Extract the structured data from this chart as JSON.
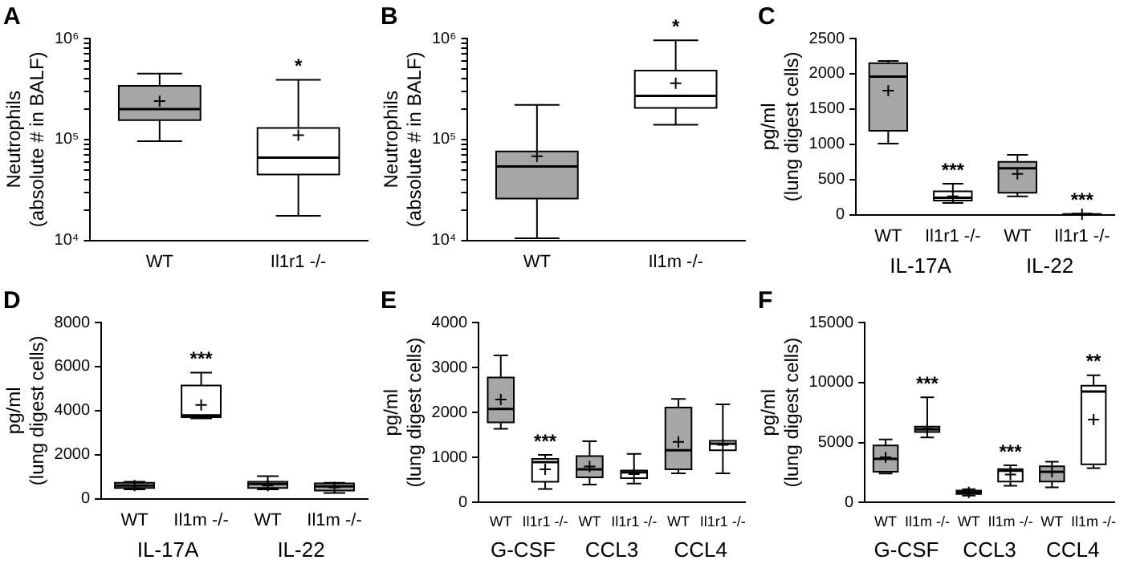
{
  "chart_data": [
    {
      "type": "box",
      "title": "A",
      "ylabel": "Neutrophils\n(absolute # in BALF)",
      "categories": [
        "WT",
        "Il1r1 -/-"
      ],
      "colors": [
        "#a6a6a6",
        "#ffffff"
      ],
      "log": true,
      "ylim": [
        10000,
        1000000
      ],
      "yticks": [
        {
          "value": 10000,
          "label": "10⁴"
        },
        {
          "value": 20000,
          "label": null
        },
        {
          "value": 30000,
          "label": null
        },
        {
          "value": 40000,
          "label": null
        },
        {
          "value": 50000,
          "label": null
        },
        {
          "value": 60000,
          "label": null
        },
        {
          "value": 70000,
          "label": null
        },
        {
          "value": 80000,
          "label": null
        },
        {
          "value": 90000,
          "label": null
        },
        {
          "value": 100000,
          "label": "10⁵"
        },
        {
          "value": 200000,
          "label": null
        },
        {
          "value": 300000,
          "label": null
        },
        {
          "value": 400000,
          "label": null
        },
        {
          "value": 500000,
          "label": null
        },
        {
          "value": 600000,
          "label": null
        },
        {
          "value": 700000,
          "label": null
        },
        {
          "value": 800000,
          "label": null
        },
        {
          "value": 900000,
          "label": null
        },
        {
          "value": 1000000,
          "label": "10⁶"
        }
      ],
      "boxes": [
        {
          "low": 96000,
          "q1": 155000,
          "median": 200000,
          "q3": 340000,
          "high": 450000,
          "mean": 240000
        },
        {
          "low": 17500,
          "q1": 45000,
          "median": 66000,
          "q3": 130000,
          "high": 390000,
          "mean": 110000
        }
      ],
      "value_labels": [
        null,
        "*"
      ]
    },
    {
      "type": "box",
      "title": "B",
      "ylabel": "Neutrophils\n(absolute # in BALF)",
      "categories": [
        "WT",
        "Il1m -/-"
      ],
      "colors": [
        "#a6a6a6",
        "#ffffff"
      ],
      "log": true,
      "ylim": [
        10000,
        1000000
      ],
      "yticks": [
        {
          "value": 10000,
          "label": "10⁴"
        },
        {
          "value": 20000,
          "label": null
        },
        {
          "value": 30000,
          "label": null
        },
        {
          "value": 40000,
          "label": null
        },
        {
          "value": 50000,
          "label": null
        },
        {
          "value": 60000,
          "label": null
        },
        {
          "value": 70000,
          "label": null
        },
        {
          "value": 80000,
          "label": null
        },
        {
          "value": 90000,
          "label": null
        },
        {
          "value": 100000,
          "label": "10⁵"
        },
        {
          "value": 200000,
          "label": null
        },
        {
          "value": 300000,
          "label": null
        },
        {
          "value": 400000,
          "label": null
        },
        {
          "value": 500000,
          "label": null
        },
        {
          "value": 600000,
          "label": null
        },
        {
          "value": 700000,
          "label": null
        },
        {
          "value": 800000,
          "label": null
        },
        {
          "value": 900000,
          "label": null
        },
        {
          "value": 1000000,
          "label": "10⁶"
        }
      ],
      "boxes": [
        {
          "low": 10500,
          "q1": 26000,
          "median": 54000,
          "q3": 76000,
          "high": 220000,
          "mean": 68000
        },
        {
          "low": 140000,
          "q1": 205000,
          "median": 270000,
          "q3": 480000,
          "high": 960000,
          "mean": 360000
        }
      ],
      "value_labels": [
        null,
        "*"
      ]
    },
    {
      "type": "box",
      "title": "C",
      "ylabel": "pg/ml\n(lung digest cells)",
      "categories": [
        "WT",
        "Il1r1 -/-",
        "WT",
        "Il1r1 -/-"
      ],
      "colors": [
        "#a6a6a6",
        "#ffffff",
        "#a6a6a6",
        "#ffffff"
      ],
      "ylim": [
        0,
        2500
      ],
      "yticks": [
        0,
        500,
        1000,
        1500,
        2000,
        2500
      ],
      "boxes": [
        {
          "low": 1010,
          "q1": 1190,
          "median": 1960,
          "q3": 2150,
          "high": 2180,
          "mean": 1760
        },
        {
          "low": 165,
          "q1": 200,
          "median": 240,
          "q3": 330,
          "high": 440,
          "mean": 260
        },
        {
          "low": 260,
          "q1": 310,
          "median": 660,
          "q3": 750,
          "high": 850,
          "mean": 580
        },
        {
          "low": 0,
          "q1": 2,
          "median": 5,
          "q3": 8,
          "high": 15,
          "mean": 6
        }
      ],
      "value_labels": [
        null,
        "***",
        null,
        "***"
      ],
      "annotations": [
        "IL-17A",
        "IL-22"
      ]
    },
    {
      "type": "box",
      "title": "D",
      "ylabel": "pg/ml\n(lung digest cells)",
      "categories": [
        "WT",
        "Il1m -/-",
        "WT",
        "Il1m -/-"
      ],
      "colors": [
        "#a6a6a6",
        "#ffffff",
        "#a6a6a6",
        "#a6a6a6"
      ],
      "ylim": [
        0,
        8000
      ],
      "yticks": [
        0,
        2000,
        4000,
        6000,
        8000
      ],
      "boxes": [
        {
          "low": 420,
          "q1": 490,
          "median": 600,
          "q3": 720,
          "high": 770,
          "mean": 600
        },
        {
          "low": 3650,
          "q1": 3700,
          "median": 3780,
          "q3": 5140,
          "high": 5720,
          "mean": 4260
        },
        {
          "low": 420,
          "q1": 490,
          "median": 670,
          "q3": 770,
          "high": 1020,
          "mean": 600
        },
        {
          "low": 260,
          "q1": 370,
          "median": 560,
          "q3": 700,
          "high": 720,
          "mean": 510
        }
      ],
      "value_labels": [
        null,
        "***",
        null,
        null
      ],
      "annotations": [
        "IL-17A",
        "IL-22"
      ]
    },
    {
      "type": "box",
      "title": "E",
      "ylabel": "pg/ml\n(lung digest cells)",
      "categories": [
        "WT",
        "Il1r1 -/-",
        "WT",
        "Il1r1 -/-",
        "WT",
        "Il1r1 -/-"
      ],
      "colors": [
        "#a6a6a6",
        "#ffffff",
        "#a6a6a6",
        "#ffffff",
        "#a6a6a6",
        "#ffffff"
      ],
      "ylim": [
        0,
        4000
      ],
      "yticks": [
        0,
        1000,
        2000,
        3000,
        4000
      ],
      "boxes": [
        {
          "low": 1640,
          "q1": 1780,
          "median": 2080,
          "q3": 2780,
          "high": 3270,
          "mean": 2290
        },
        {
          "low": 300,
          "q1": 460,
          "median": 900,
          "q3": 970,
          "high": 1060,
          "mean": 740
        },
        {
          "low": 400,
          "q1": 560,
          "median": 740,
          "q3": 1030,
          "high": 1360,
          "mean": 800
        },
        {
          "low": 420,
          "q1": 540,
          "median": 670,
          "q3": 710,
          "high": 1080,
          "mean": 630
        },
        {
          "low": 650,
          "q1": 740,
          "median": 1160,
          "q3": 2110,
          "high": 2300,
          "mean": 1350
        },
        {
          "low": 650,
          "q1": 1160,
          "median": 1310,
          "q3": 1370,
          "high": 2180,
          "mean": 1280
        }
      ],
      "value_labels": [
        null,
        "***",
        null,
        null,
        null,
        null
      ],
      "annotations": [
        "G-CSF",
        "CCL3",
        "CCL4"
      ]
    },
    {
      "type": "box",
      "title": "F",
      "ylabel": "pg/ml\n(lung digest cells)",
      "categories": [
        "WT",
        "Il1m -/-",
        "WT",
        "Il1m -/-",
        "WT",
        "Il1m -/-"
      ],
      "colors": [
        "#a6a6a6",
        "#a6a6a6",
        "#a6a6a6",
        "#ffffff",
        "#a6a6a6",
        "#ffffff"
      ],
      "ylim": [
        0,
        15000
      ],
      "yticks": [
        0,
        5000,
        10000,
        15000
      ],
      "boxes": [
        {
          "low": 2420,
          "q1": 2560,
          "median": 3640,
          "q3": 4760,
          "high": 5250,
          "mean": 3770
        },
        {
          "low": 5430,
          "q1": 5880,
          "median": 6100,
          "q3": 6330,
          "high": 8760,
          "mean": 6150
        },
        {
          "low": 580,
          "q1": 720,
          "median": 850,
          "q3": 990,
          "high": 1120,
          "mean": 850
        },
        {
          "low": 1390,
          "q1": 1750,
          "median": 2650,
          "q3": 2780,
          "high": 3100,
          "mean": 2330
        },
        {
          "low": 1260,
          "q1": 1750,
          "median": 2560,
          "q3": 3010,
          "high": 3410,
          "mean": 2560
        },
        {
          "low": 2870,
          "q1": 3190,
          "median": 9250,
          "q3": 9740,
          "high": 10600,
          "mean": 6910
        }
      ],
      "value_labels": [
        null,
        "***",
        null,
        "***",
        null,
        "**"
      ],
      "annotations": [
        "G-CSF",
        "CCL3",
        "CCL4"
      ]
    }
  ]
}
